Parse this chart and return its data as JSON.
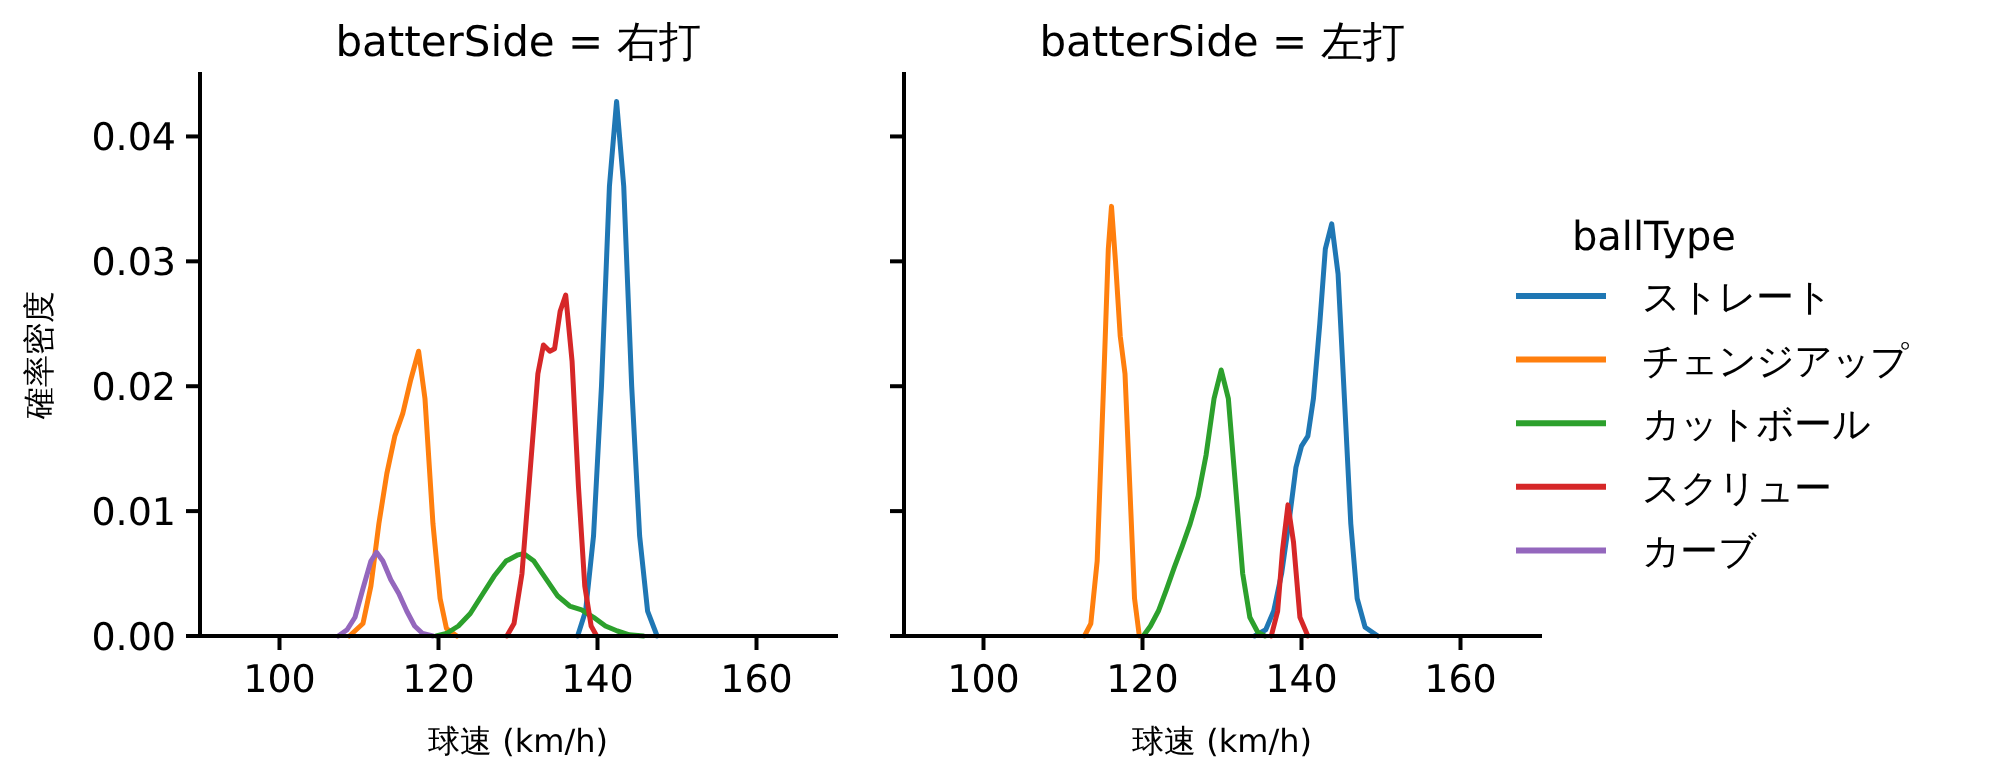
{
  "chart_data": [
    {
      "type": "line",
      "title": "batterSide = 右打",
      "xlabel": "球速 (km/h)",
      "ylabel": "確率密度",
      "xlim": [
        90,
        170
      ],
      "ylim": [
        0,
        0.045
      ],
      "xticks": [
        100,
        120,
        140,
        160
      ],
      "yticks": [
        {
          "value": 0,
          "label": "0.00"
        },
        {
          "value": 0.01,
          "label": "0.01"
        },
        {
          "value": 0.02,
          "label": "0.02"
        },
        {
          "value": 0.03,
          "label": "0.03"
        },
        {
          "value": 0.04,
          "label": "0.04"
        }
      ],
      "series": [
        {
          "color": "#1f77b4",
          "x": [
            137.5,
            138.5,
            139.5,
            140.5,
            141.5,
            142.4,
            143.3,
            144.3,
            145.3,
            146.3,
            147.5
          ],
          "values": [
            0,
            0.002,
            0.008,
            0.02,
            0.036,
            0.0428,
            0.036,
            0.02,
            0.008,
            0.002,
            0
          ]
        },
        {
          "color": "#ff7f0e",
          "x": [
            108.8,
            110.5,
            111.5,
            112.5,
            113.5,
            114.5,
            115.5,
            116.5,
            117.5,
            118.3,
            119.3,
            120.2,
            121,
            122.3
          ],
          "values": [
            0,
            0.001,
            0.004,
            0.009,
            0.013,
            0.016,
            0.0178,
            0.0205,
            0.0228,
            0.019,
            0.009,
            0.003,
            0.0006,
            0
          ]
        },
        {
          "color": "#2ca02c",
          "x": [
            119.7,
            121,
            122.5,
            124,
            125.5,
            127,
            128.5,
            130,
            130.7,
            132,
            133.5,
            135,
            136.5,
            138,
            139.5,
            141,
            142.5,
            144,
            145.8
          ],
          "values": [
            0,
            0.0002,
            0.0008,
            0.0018,
            0.0033,
            0.0048,
            0.006,
            0.0065,
            0.0066,
            0.006,
            0.0046,
            0.0032,
            0.0024,
            0.0021,
            0.0015,
            0.0008,
            0.0004,
            0.0001,
            0
          ]
        },
        {
          "color": "#d62728",
          "x": [
            128.6,
            129.5,
            130.5,
            131.5,
            132.5,
            133.2,
            134,
            134.6,
            135.3,
            136,
            136.8,
            137.6,
            138.4,
            139.2,
            139.9
          ],
          "values": [
            0,
            0.001,
            0.005,
            0.013,
            0.021,
            0.0233,
            0.0228,
            0.023,
            0.026,
            0.0273,
            0.022,
            0.012,
            0.004,
            0.0008,
            0
          ]
        },
        {
          "color": "#9467bd",
          "x": [
            107.4,
            108.5,
            109.5,
            110.5,
            111.5,
            112.2,
            113,
            114,
            115,
            116,
            117,
            118,
            119.3
          ],
          "values": [
            0,
            0.0005,
            0.0015,
            0.0038,
            0.006,
            0.0067,
            0.006,
            0.0045,
            0.0034,
            0.002,
            0.0008,
            0.0002,
            0
          ]
        }
      ]
    },
    {
      "type": "line",
      "title": "batterSide = 左打",
      "xlabel": "球速 (km/h)",
      "xlim": [
        90,
        170
      ],
      "ylim": [
        0,
        0.045
      ],
      "xticks": [
        100,
        120,
        140,
        160
      ],
      "yticks": [
        0,
        0.01,
        0.02,
        0.03,
        0.04
      ],
      "tick_labels": "x",
      "legend": "right",
      "legend_title": "ballType",
      "series": [
        {
          "name": "ストレート",
          "color": "#1f77b4",
          "x": [
            134.1,
            135.5,
            136.5,
            137.5,
            138.5,
            139.3,
            140,
            140.8,
            141.5,
            142.3,
            143,
            143.8,
            144.6,
            145.4,
            146.2,
            147,
            148,
            149.6
          ],
          "values": [
            0,
            0.0005,
            0.002,
            0.005,
            0.0095,
            0.0135,
            0.0152,
            0.016,
            0.019,
            0.025,
            0.031,
            0.033,
            0.029,
            0.019,
            0.009,
            0.003,
            0.0007,
            0
          ]
        },
        {
          "name": "チェンジアップ",
          "color": "#ff7f0e",
          "x": [
            112.7,
            113.5,
            114.3,
            115.1,
            115.7,
            116.1,
            116.6,
            117.2,
            117.8,
            118.4,
            119,
            119.6
          ],
          "values": [
            0,
            0.001,
            0.006,
            0.02,
            0.031,
            0.0344,
            0.03,
            0.024,
            0.021,
            0.012,
            0.003,
            0
          ]
        },
        {
          "name": "カットボール",
          "color": "#2ca02c",
          "x": [
            120.1,
            121,
            122,
            123,
            124,
            125,
            126,
            127,
            128,
            129,
            129.9,
            130.8,
            131.7,
            132.6,
            133.5,
            134.5,
            135.4
          ],
          "values": [
            0,
            0.0008,
            0.002,
            0.0037,
            0.0055,
            0.0072,
            0.009,
            0.0112,
            0.0145,
            0.019,
            0.0213,
            0.019,
            0.012,
            0.005,
            0.0015,
            0.0003,
            0
          ]
        },
        {
          "name": "スクリュー",
          "color": "#d62728",
          "x": [
            136.2,
            137,
            137.6,
            138.3,
            139,
            139.8,
            140.8
          ],
          "values": [
            0,
            0.002,
            0.0068,
            0.0105,
            0.0075,
            0.0015,
            0
          ]
        },
        {
          "name": "カーブ",
          "color": "#9467bd"
        }
      ]
    }
  ]
}
